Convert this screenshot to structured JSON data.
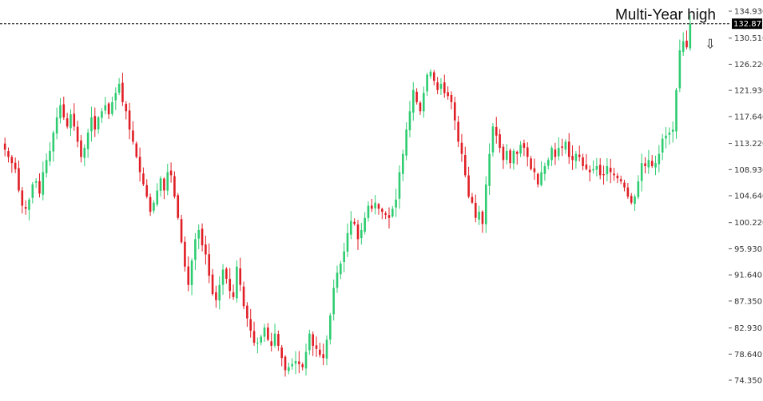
{
  "chart_data": {
    "type": "candlestick",
    "colors": {
      "up": "#2ecc71",
      "down": "#e01e25",
      "axis_text": "#333333",
      "high_line": "#000000",
      "price_tag_bg": "#000000"
    },
    "ylim": [
      74.35,
      134.93
    ],
    "y_ticks": [
      "134.930",
      "130.510",
      "126.220",
      "121.930",
      "117.640",
      "113.220",
      "108.930",
      "104.640",
      "100.220",
      "95.930",
      "91.640",
      "87.350",
      "82.930",
      "78.640",
      "74.350"
    ],
    "grid": false,
    "annotation": "Multi-Year high",
    "last_price": "132.872",
    "high_line_value": 132.872,
    "arrow_icon": "down-arrow-icon",
    "arrow_glyph": "⇩",
    "closes": [
      112.2,
      111.0,
      110.0,
      109.0,
      105.5,
      103.0,
      102.5,
      104.0,
      106.5,
      107.0,
      105.0,
      108.5,
      110.5,
      112.0,
      115.0,
      117.5,
      119.5,
      117.5,
      116.0,
      118.0,
      116.0,
      113.5,
      111.0,
      112.5,
      115.0,
      117.5,
      115.5,
      117.5,
      118.5,
      119.5,
      118.0,
      120.0,
      121.5,
      123.0,
      120.0,
      118.5,
      115.5,
      113.5,
      111.0,
      108.5,
      106.5,
      104.5,
      102.0,
      103.5,
      105.5,
      107.5,
      105.5,
      108.5,
      108.0,
      104.5,
      101.0,
      97.0,
      93.0,
      90.0,
      94.0,
      97.5,
      99.0,
      96.5,
      95.0,
      91.5,
      88.5,
      87.5,
      90.0,
      92.5,
      91.0,
      89.0,
      88.0,
      93.0,
      90.0,
      86.5,
      84.5,
      82.5,
      80.5,
      80.5,
      81.5,
      83.0,
      81.0,
      80.0,
      82.0,
      80.0,
      78.0,
      76.0,
      76.5,
      77.0,
      77.5,
      77.0,
      76.5,
      79.0,
      82.0,
      80.0,
      79.5,
      78.5,
      78.0,
      81.0,
      85.0,
      89.5,
      92.0,
      93.5,
      95.5,
      98.5,
      100.5,
      100.0,
      97.5,
      99.0,
      101.0,
      103.0,
      102.5,
      103.5,
      102.5,
      102.0,
      101.5,
      101.0,
      102.5,
      104.0,
      108.5,
      111.5,
      115.5,
      118.5,
      122.0,
      120.0,
      118.5,
      121.5,
      124.5,
      125.0,
      123.5,
      122.0,
      123.0,
      121.5,
      121.0,
      120.0,
      117.0,
      113.5,
      111.5,
      108.0,
      104.5,
      103.5,
      101.0,
      102.0,
      100.0,
      106.5,
      111.5,
      116.0,
      114.5,
      112.5,
      110.5,
      112.0,
      110.0,
      112.0,
      111.5,
      113.0,
      112.5,
      111.0,
      109.0,
      108.5,
      106.5,
      108.5,
      109.5,
      110.5,
      112.5,
      111.0,
      112.5,
      112.5,
      113.5,
      111.0,
      110.5,
      111.5,
      111.0,
      109.5,
      109.0,
      108.5,
      109.0,
      109.5,
      108.0,
      108.0,
      109.5,
      108.5,
      108.0,
      107.5,
      107.0,
      106.0,
      104.5,
      103.5,
      104.5,
      107.0,
      110.0,
      109.5,
      110.5,
      109.5,
      110.0,
      111.5,
      114.0,
      114.5,
      115.0,
      115.5,
      122.0,
      128.5,
      130.0,
      129.0,
      132.87
    ]
  }
}
